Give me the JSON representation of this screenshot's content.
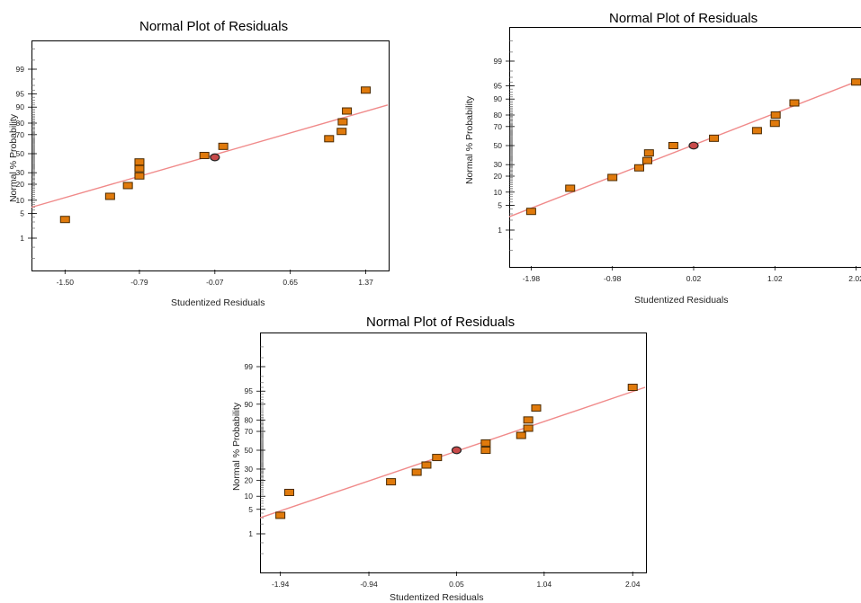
{
  "colors": {
    "point_fill": "#e07a0c",
    "point_stroke": "#4a2a00",
    "fit_line": "#f08a8a",
    "highlight_point": "#c84a4a",
    "axis": "#000000"
  },
  "chart_data": [
    {
      "type": "scatter",
      "title": "Normal Plot of Residuals",
      "xlabel": "Studentized Residuals",
      "ylabel": "Normal % Probability",
      "xlim": [
        -1.82,
        1.58
      ],
      "y_scale": "normal-probability",
      "yticks": [
        1,
        5,
        10,
        20,
        30,
        50,
        70,
        80,
        90,
        95,
        99
      ],
      "xticks": [
        "-1.50",
        "-0.79",
        "-0.07",
        "0.65",
        "1.37"
      ],
      "xtick_values": [
        -1.5,
        -0.79,
        -0.07,
        0.65,
        1.37
      ],
      "grid": false,
      "fit_line": {
        "x": [
          -1.82,
          1.58
        ],
        "y": [
          7.0,
          91.0
        ]
      },
      "points": [
        {
          "x": -1.5,
          "y": 3.5
        },
        {
          "x": -1.07,
          "y": 12
        },
        {
          "x": -0.9,
          "y": 19
        },
        {
          "x": -0.79,
          "y": 27
        },
        {
          "x": -0.79,
          "y": 34
        },
        {
          "x": -0.79,
          "y": 41
        },
        {
          "x": -0.17,
          "y": 48
        },
        {
          "x": -0.07,
          "y": 46,
          "highlight": true
        },
        {
          "x": 0.01,
          "y": 58
        },
        {
          "x": 1.02,
          "y": 66
        },
        {
          "x": 1.14,
          "y": 73
        },
        {
          "x": 1.15,
          "y": 81
        },
        {
          "x": 1.19,
          "y": 88
        },
        {
          "x": 1.37,
          "y": 96
        }
      ]
    },
    {
      "type": "scatter",
      "title": "Normal Plot of Residuals",
      "xlabel": "Studentized Residuals",
      "ylabel": "Normal % Probability",
      "xlim": [
        -2.25,
        2.08
      ],
      "y_scale": "normal-probability",
      "yticks": [
        1,
        5,
        10,
        20,
        30,
        50,
        70,
        80,
        90,
        95,
        99
      ],
      "xticks": [
        "-1.98",
        "-0.98",
        "0.02",
        "1.02",
        "2.02"
      ],
      "xtick_values": [
        -1.98,
        -0.98,
        0.02,
        1.02,
        2.02
      ],
      "grid": false,
      "fit_line": {
        "x": [
          -2.25,
          2.08
        ],
        "y": [
          2.5,
          96.5
        ]
      },
      "points": [
        {
          "x": -1.98,
          "y": 3.5
        },
        {
          "x": -1.5,
          "y": 12
        },
        {
          "x": -0.98,
          "y": 19
        },
        {
          "x": -0.65,
          "y": 27
        },
        {
          "x": -0.55,
          "y": 34
        },
        {
          "x": -0.53,
          "y": 42
        },
        {
          "x": -0.23,
          "y": 50
        },
        {
          "x": 0.02,
          "y": 50,
          "highlight": true
        },
        {
          "x": 0.27,
          "y": 58
        },
        {
          "x": 0.8,
          "y": 66
        },
        {
          "x": 1.02,
          "y": 73
        },
        {
          "x": 1.03,
          "y": 80
        },
        {
          "x": 1.26,
          "y": 88
        },
        {
          "x": 2.02,
          "y": 96
        }
      ]
    },
    {
      "type": "scatter",
      "title": "Normal Plot of Residuals",
      "xlabel": "Studentized Residuals",
      "ylabel": "Normal % Probability",
      "xlim": [
        -2.17,
        2.18
      ],
      "y_scale": "normal-probability",
      "yticks": [
        1,
        5,
        10,
        20,
        30,
        50,
        70,
        80,
        90,
        95,
        99
      ],
      "xticks": [
        "-1.94",
        "-0.94",
        "0.05",
        "1.04",
        "2.04"
      ],
      "xtick_values": [
        -1.94,
        -0.94,
        0.05,
        1.04,
        2.04
      ],
      "grid": false,
      "fit_line": {
        "x": [
          -2.17,
          2.18
        ],
        "y": [
          3.0,
          96.0
        ]
      },
      "points": [
        {
          "x": -1.94,
          "y": 3.5
        },
        {
          "x": -1.84,
          "y": 12
        },
        {
          "x": -0.69,
          "y": 19
        },
        {
          "x": -0.4,
          "y": 27
        },
        {
          "x": -0.29,
          "y": 34
        },
        {
          "x": -0.17,
          "y": 42
        },
        {
          "x": 0.05,
          "y": 50,
          "highlight": true
        },
        {
          "x": 0.38,
          "y": 50
        },
        {
          "x": 0.38,
          "y": 58
        },
        {
          "x": 0.78,
          "y": 66
        },
        {
          "x": 0.86,
          "y": 73
        },
        {
          "x": 0.86,
          "y": 80
        },
        {
          "x": 0.95,
          "y": 88
        },
        {
          "x": 2.04,
          "y": 96
        }
      ]
    }
  ]
}
